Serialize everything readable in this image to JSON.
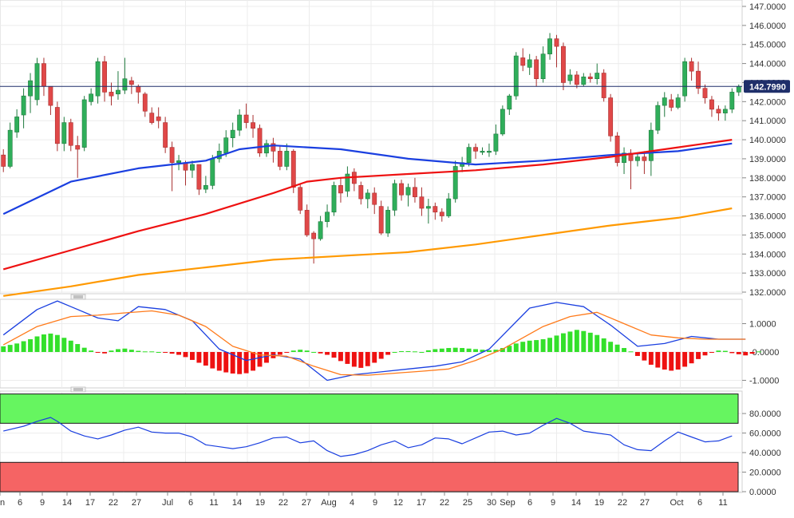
{
  "chart_data": [
    {
      "panel": "price",
      "type": "candlestick",
      "ylim": [
        132.0,
        147.0
      ],
      "y_ticks": [
        "147.0000",
        "146.0000",
        "145.0000",
        "144.0000",
        "143.0000",
        "142.0000",
        "141.0000",
        "140.0000",
        "139.0000",
        "138.0000",
        "137.0000",
        "136.0000",
        "135.0000",
        "134.0000",
        "133.0000",
        "132.0000"
      ],
      "current_price": "142.7990",
      "candles": [
        [
          139.2,
          138.6,
          139.5,
          138.3
        ],
        [
          138.6,
          140.5,
          140.9,
          138.5
        ],
        [
          140.4,
          141.2,
          141.6,
          140.1
        ],
        [
          141.3,
          142.3,
          142.7,
          140.6
        ],
        [
          142.3,
          143.1,
          143.5,
          141.4
        ],
        [
          142.1,
          144.0,
          144.3,
          141.8
        ],
        [
          144.0,
          142.8,
          144.3,
          142.3
        ],
        [
          142.8,
          141.8,
          142.8,
          141.3
        ],
        [
          141.7,
          139.8,
          142.0,
          139.4
        ],
        [
          139.8,
          140.9,
          141.2,
          139.4
        ],
        [
          140.9,
          139.7,
          141.1,
          139.4
        ],
        [
          139.7,
          139.5,
          140.2,
          138.0
        ],
        [
          139.6,
          142.1,
          142.3,
          139.4
        ],
        [
          142.0,
          142.4,
          142.7,
          141.8
        ],
        [
          142.3,
          144.1,
          144.3,
          141.9
        ],
        [
          144.1,
          142.5,
          144.4,
          142.0
        ],
        [
          142.5,
          142.3,
          143.0,
          141.8
        ],
        [
          142.4,
          142.6,
          143.6,
          142.1
        ],
        [
          142.6,
          143.2,
          144.3,
          142.4
        ],
        [
          143.1,
          142.9,
          143.3,
          142.4
        ],
        [
          142.8,
          142.5,
          142.9,
          141.9
        ],
        [
          142.4,
          141.5,
          142.5,
          141.2
        ],
        [
          141.4,
          140.9,
          141.7,
          140.8
        ],
        [
          141.2,
          141.0,
          141.7,
          140.6
        ],
        [
          140.9,
          139.6,
          141.2,
          139.3
        ],
        [
          139.6,
          138.8,
          139.9,
          137.3
        ],
        [
          138.8,
          138.9,
          139.2,
          138.4
        ],
        [
          138.8,
          138.4,
          138.9,
          137.6
        ],
        [
          138.4,
          138.7,
          138.9,
          138.0
        ],
        [
          138.7,
          137.4,
          138.7,
          137.1
        ],
        [
          137.4,
          137.6,
          138.1,
          137.2
        ],
        [
          137.6,
          139.0,
          139.2,
          137.4
        ],
        [
          139.0,
          139.4,
          139.8,
          138.8
        ],
        [
          139.3,
          140.1,
          140.5,
          139.1
        ],
        [
          140.1,
          140.5,
          140.9,
          139.6
        ],
        [
          140.5,
          141.3,
          141.6,
          140.2
        ],
        [
          141.3,
          140.9,
          141.9,
          140.6
        ],
        [
          140.9,
          140.6,
          141.3,
          140.1
        ],
        [
          140.6,
          139.3,
          140.8,
          139.1
        ],
        [
          139.3,
          139.8,
          140.0,
          139.1
        ],
        [
          139.8,
          139.4,
          140.1,
          138.8
        ],
        [
          139.4,
          138.6,
          139.7,
          138.4
        ],
        [
          138.6,
          139.4,
          139.8,
          138.4
        ],
        [
          139.4,
          137.5,
          139.5,
          137.2
        ],
        [
          137.5,
          136.3,
          137.7,
          136.1
        ],
        [
          136.3,
          135.0,
          136.6,
          134.9
        ],
        [
          135.1,
          134.8,
          135.2,
          133.5
        ],
        [
          134.8,
          135.7,
          136.0,
          134.7
        ],
        [
          135.7,
          136.2,
          136.6,
          135.4
        ],
        [
          136.2,
          137.6,
          137.8,
          136.0
        ],
        [
          137.6,
          137.2,
          138.0,
          136.7
        ],
        [
          137.3,
          138.2,
          138.6,
          137.0
        ],
        [
          138.3,
          137.7,
          138.5,
          137.3
        ],
        [
          137.6,
          136.9,
          137.8,
          136.6
        ],
        [
          136.9,
          137.2,
          137.4,
          136.4
        ],
        [
          137.2,
          136.6,
          137.5,
          136.1
        ],
        [
          136.5,
          135.1,
          136.8,
          135.0
        ],
        [
          135.1,
          136.3,
          136.5,
          134.9
        ],
        [
          136.3,
          137.7,
          137.9,
          136.0
        ],
        [
          137.7,
          137.1,
          137.9,
          136.8
        ],
        [
          137.1,
          137.5,
          137.7,
          136.5
        ],
        [
          137.5,
          137.0,
          138.0,
          136.7
        ],
        [
          137.0,
          136.4,
          137.5,
          136.0
        ],
        [
          136.4,
          136.5,
          136.9,
          135.6
        ],
        [
          136.5,
          136.2,
          136.7,
          135.8
        ],
        [
          136.2,
          136.0,
          136.4,
          135.7
        ],
        [
          136.0,
          136.9,
          137.2,
          135.9
        ],
        [
          136.9,
          138.6,
          138.9,
          136.7
        ],
        [
          138.6,
          138.8,
          139.1,
          138.3
        ],
        [
          138.8,
          139.6,
          139.8,
          138.6
        ],
        [
          139.6,
          139.4,
          139.8,
          139.0
        ],
        [
          139.4,
          139.4,
          139.6,
          139.2
        ],
        [
          139.4,
          139.4,
          139.8,
          139.1
        ],
        [
          139.4,
          140.3,
          140.8,
          139.2
        ],
        [
          140.3,
          141.6,
          141.8,
          140.2
        ],
        [
          141.6,
          142.3,
          142.4,
          141.3
        ],
        [
          142.3,
          144.4,
          144.6,
          142.1
        ],
        [
          144.3,
          143.9,
          144.8,
          143.6
        ],
        [
          143.8,
          144.2,
          144.5,
          143.4
        ],
        [
          144.2,
          143.2,
          144.4,
          142.8
        ],
        [
          143.2,
          144.5,
          144.9,
          143.0
        ],
        [
          144.5,
          145.3,
          145.6,
          144.2
        ],
        [
          145.3,
          144.9,
          145.5,
          143.8
        ],
        [
          144.9,
          143.0,
          145.1,
          142.6
        ],
        [
          143.1,
          143.4,
          143.7,
          142.9
        ],
        [
          143.4,
          142.9,
          143.6,
          142.7
        ],
        [
          142.9,
          143.3,
          143.5,
          142.8
        ],
        [
          143.3,
          143.2,
          143.5,
          143.0
        ],
        [
          143.2,
          143.5,
          144.0,
          142.9
        ],
        [
          143.5,
          142.2,
          143.7,
          142.0
        ],
        [
          142.2,
          140.2,
          142.4,
          139.9
        ],
        [
          140.2,
          138.8,
          140.4,
          138.6
        ],
        [
          138.8,
          139.3,
          139.6,
          138.2
        ],
        [
          139.3,
          138.9,
          139.5,
          137.4
        ],
        [
          138.9,
          139.1,
          139.3,
          138.6
        ],
        [
          139.1,
          138.9,
          139.4,
          138.2
        ],
        [
          138.9,
          140.5,
          140.9,
          138.1
        ],
        [
          140.5,
          141.8,
          142.0,
          140.3
        ],
        [
          141.8,
          142.2,
          142.5,
          141.2
        ],
        [
          142.1,
          141.7,
          142.4,
          141.5
        ],
        [
          141.7,
          142.2,
          142.4,
          141.6
        ],
        [
          142.3,
          144.1,
          144.3,
          142.0
        ],
        [
          144.1,
          143.6,
          144.3,
          143.1
        ],
        [
          143.6,
          142.7,
          144.1,
          142.4
        ],
        [
          142.7,
          142.2,
          142.9,
          141.9
        ],
        [
          142.1,
          141.6,
          142.3,
          141.2
        ],
        [
          141.6,
          141.4,
          141.8,
          141.0
        ],
        [
          141.4,
          141.6,
          141.8,
          141.0
        ],
        [
          141.6,
          142.5,
          142.7,
          141.4
        ],
        [
          142.5,
          142.8,
          142.9,
          142.3
        ]
      ],
      "series": [
        {
          "name": "",
          "color": "#1a3fe0",
          "x": [
            0,
            10,
            20,
            30,
            35,
            40,
            50,
            60,
            70,
            80,
            90,
            100,
            108
          ],
          "values": [
            136.1,
            137.8,
            138.5,
            138.9,
            139.5,
            139.7,
            139.5,
            139.0,
            138.7,
            138.9,
            139.2,
            139.4,
            139.8
          ]
        },
        {
          "name": "",
          "color": "#ee1111",
          "x": [
            0,
            10,
            20,
            30,
            40,
            45,
            50,
            60,
            70,
            80,
            90,
            100,
            108
          ],
          "values": [
            133.2,
            134.2,
            135.2,
            136.1,
            137.2,
            137.8,
            138.0,
            138.2,
            138.4,
            138.7,
            139.1,
            139.6,
            140.0
          ]
        },
        {
          "name": "",
          "color": "#ff9900",
          "x": [
            0,
            10,
            20,
            30,
            40,
            50,
            60,
            70,
            80,
            90,
            100,
            108
          ],
          "values": [
            131.8,
            132.3,
            132.9,
            133.3,
            133.7,
            133.9,
            134.1,
            134.5,
            135.0,
            135.5,
            135.9,
            136.4
          ]
        }
      ]
    },
    {
      "panel": "macd",
      "type": "bar+line",
      "ylim": [
        -1.1,
        1.8
      ],
      "y_ticks": [
        "1.0000",
        "-0.0000",
        "-1.0000"
      ],
      "histogram": [
        0.2,
        0.25,
        0.3,
        0.38,
        0.45,
        0.55,
        0.62,
        0.65,
        0.6,
        0.5,
        0.4,
        0.28,
        0.15,
        0.05,
        -0.02,
        -0.05,
        0.05,
        0.1,
        0.12,
        0.08,
        0.04,
        0.02,
        0.02,
        0.0,
        -0.02,
        -0.06,
        -0.1,
        -0.18,
        -0.28,
        -0.38,
        -0.48,
        -0.58,
        -0.66,
        -0.72,
        -0.76,
        -0.78,
        -0.75,
        -0.66,
        -0.52,
        -0.38,
        -0.22,
        -0.1,
        -0.02,
        0.05,
        0.08,
        0.05,
        0.0,
        -0.05,
        -0.1,
        -0.2,
        -0.32,
        -0.42,
        -0.52,
        -0.56,
        -0.5,
        -0.38,
        -0.24,
        -0.1,
        0.0,
        0.03,
        0.03,
        0.02,
        0.0,
        0.06,
        0.1,
        0.12,
        0.14,
        0.15,
        0.14,
        0.12,
        0.1,
        0.08,
        0.06,
        0.08,
        0.14,
        0.22,
        0.3,
        0.36,
        0.4,
        0.42,
        0.45,
        0.5,
        0.58,
        0.66,
        0.72,
        0.78,
        0.74,
        0.68,
        0.6,
        0.48,
        0.36,
        0.26,
        0.14,
        0.02,
        -0.14,
        -0.3,
        -0.45,
        -0.55,
        -0.62,
        -0.66,
        -0.62,
        -0.52,
        -0.4,
        -0.25,
        -0.12,
        -0.02,
        0.05,
        0.04,
        -0.04,
        -0.08,
        -0.12,
        -0.06,
        0.02
      ],
      "series": [
        {
          "name": "",
          "color": "#1a3fe0",
          "x": [
            0,
            5,
            8,
            10,
            14,
            17,
            20,
            24,
            28,
            32,
            36,
            40,
            44,
            48,
            52,
            56,
            60,
            64,
            68,
            72,
            78,
            82,
            86,
            90,
            94,
            98,
            102,
            106,
            110
          ],
          "values": [
            0.6,
            1.5,
            1.8,
            1.6,
            1.2,
            1.1,
            1.6,
            1.5,
            1.1,
            0.1,
            -0.3,
            -0.1,
            -0.25,
            -1.0,
            -0.8,
            -0.7,
            -0.6,
            -0.5,
            -0.35,
            0.1,
            1.55,
            1.75,
            1.6,
            0.95,
            0.2,
            0.3,
            0.55,
            0.45,
            0.45
          ]
        },
        {
          "name": "",
          "color": "#ff7a1a",
          "x": [
            0,
            5,
            10,
            14,
            18,
            22,
            26,
            30,
            34,
            38,
            42,
            46,
            50,
            54,
            58,
            62,
            66,
            70,
            74,
            80,
            84,
            88,
            92,
            96,
            100,
            104,
            110
          ],
          "values": [
            0.25,
            0.9,
            1.25,
            1.3,
            1.38,
            1.45,
            1.3,
            0.9,
            0.2,
            -0.1,
            -0.15,
            -0.5,
            -0.8,
            -0.82,
            -0.75,
            -0.68,
            -0.6,
            -0.3,
            0.1,
            0.9,
            1.25,
            1.4,
            1.0,
            0.6,
            0.5,
            0.45,
            0.45
          ]
        }
      ]
    },
    {
      "panel": "rsi",
      "type": "line",
      "ylim": [
        0,
        100
      ],
      "y_ticks": [
        "80.0000",
        "60.0000",
        "40.0000",
        "20.0000",
        "0.0000"
      ],
      "overbought": 70,
      "oversold": 30,
      "series": [
        {
          "name": "",
          "color": "#1a3fe0",
          "x": [
            0,
            3,
            5,
            7,
            8,
            10,
            12,
            14,
            16,
            18,
            20,
            22,
            24,
            26,
            28,
            30,
            32,
            34,
            36,
            38,
            40,
            42,
            44,
            46,
            48,
            50,
            52,
            54,
            56,
            58,
            60,
            62,
            64,
            66,
            68,
            70,
            72,
            74,
            76,
            78,
            80,
            82,
            84,
            86,
            88,
            90,
            92,
            94,
            96,
            98,
            100,
            102,
            104,
            106,
            108
          ],
          "values": [
            62,
            67,
            72,
            76,
            72,
            62,
            57,
            54,
            58,
            63,
            66,
            61,
            60,
            60,
            56,
            48,
            46,
            44,
            46,
            50,
            55,
            56,
            50,
            52,
            42,
            36,
            38,
            42,
            48,
            52,
            45,
            48,
            55,
            54,
            49,
            55,
            61,
            62,
            58,
            60,
            68,
            75,
            70,
            62,
            60,
            58,
            48,
            43,
            42,
            52,
            61,
            56,
            51,
            52,
            57
          ]
        }
      ]
    }
  ],
  "x_labels": [
    "n",
    "6",
    "9",
    "14",
    "17",
    "22",
    "27",
    "Jul",
    "6",
    "11",
    "14",
    "19",
    "22",
    "27",
    "Aug",
    "4",
    "9",
    "12",
    "17",
    "22",
    "25",
    "30",
    "Sep",
    "6",
    "9",
    "14",
    "19",
    "22",
    "27",
    "Oct",
    "6",
    "11"
  ]
}
